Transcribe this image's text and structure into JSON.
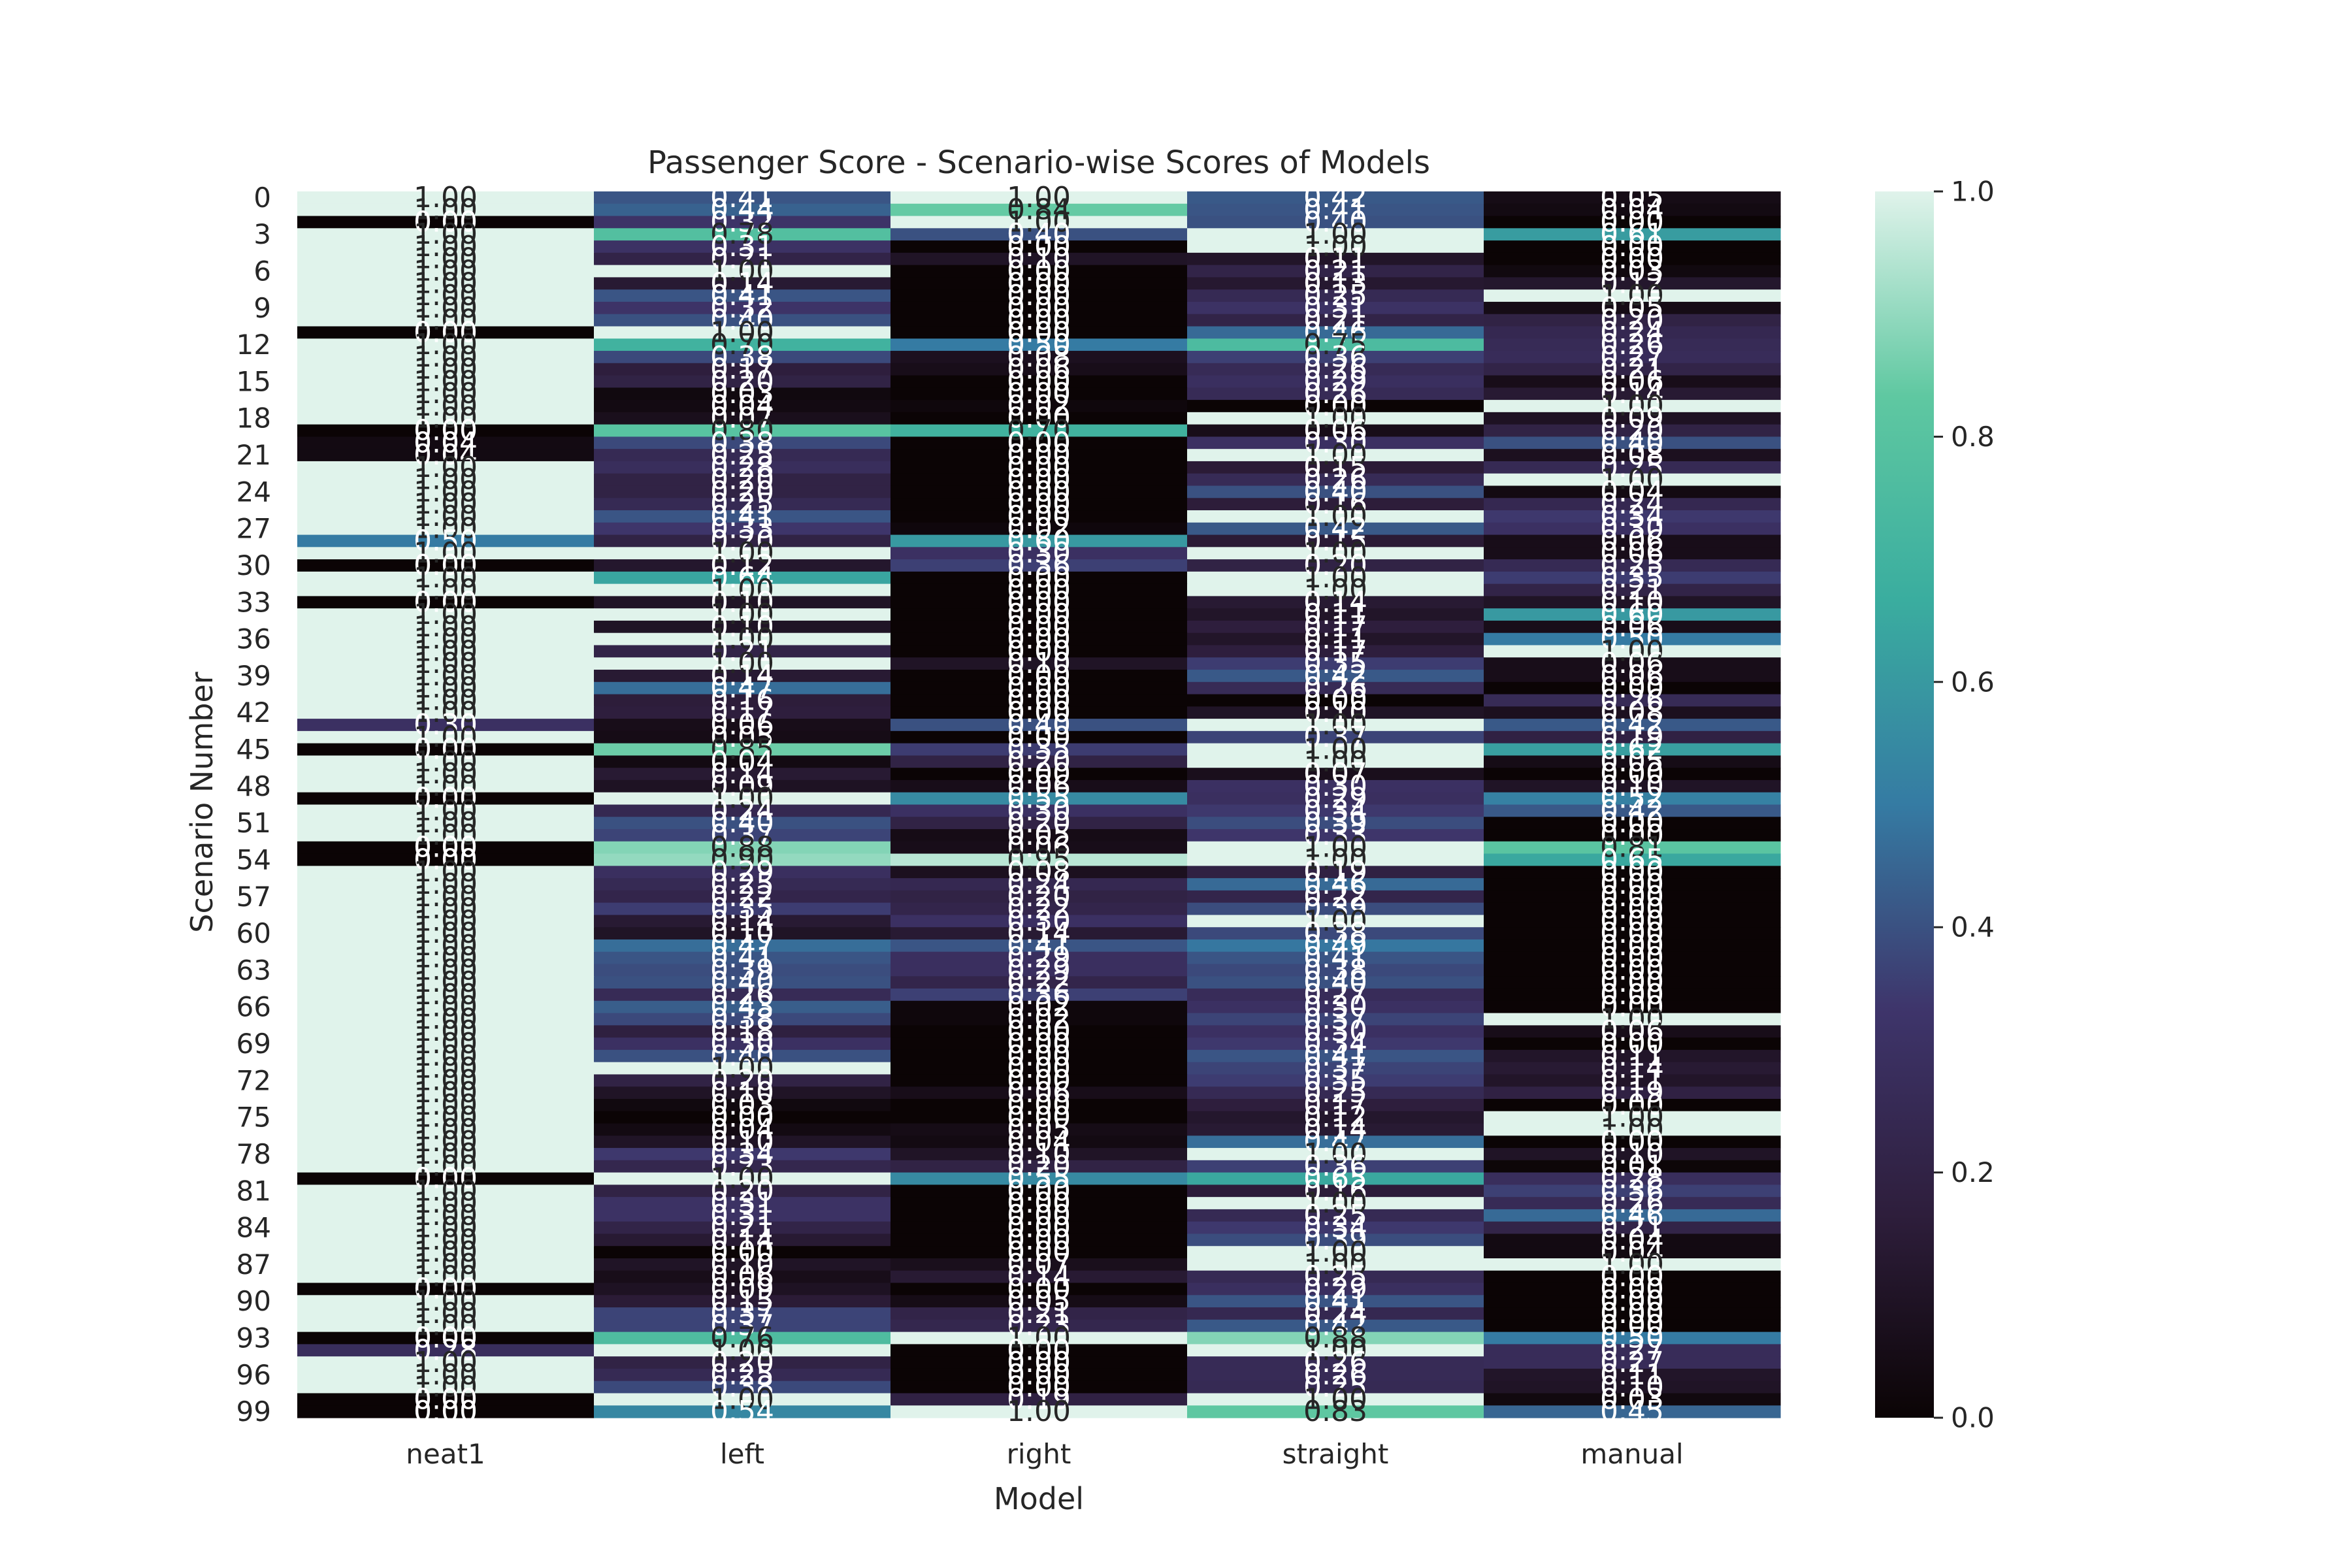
{
  "chart_data": {
    "type": "heatmap",
    "title": "Passenger Score - Scenario-wise Scores of Models",
    "xlabel": "Model",
    "ylabel": "Scenario Number",
    "x_categories": [
      "neat1",
      "left",
      "right",
      "straight",
      "manual"
    ],
    "y_categories": [
      0,
      1,
      2,
      3,
      4,
      5,
      6,
      7,
      8,
      9,
      10,
      11,
      12,
      13,
      14,
      15,
      16,
      17,
      18,
      19,
      20,
      21,
      22,
      23,
      24,
      25,
      26,
      27,
      28,
      29,
      30,
      31,
      32,
      33,
      34,
      35,
      36,
      37,
      38,
      39,
      40,
      41,
      42,
      43,
      44,
      45,
      46,
      47,
      48,
      49,
      50,
      51,
      52,
      53,
      54,
      55,
      56,
      57,
      58,
      59,
      60,
      61,
      62,
      63,
      64,
      65,
      66,
      67,
      68,
      69,
      70,
      71,
      72,
      73,
      74,
      75,
      76,
      77,
      78,
      79,
      80,
      81,
      82,
      83,
      84,
      85,
      86,
      87,
      88,
      89,
      90,
      91,
      92,
      93,
      94,
      95,
      96,
      97,
      98,
      99
    ],
    "y_tick_labels": [
      "0",
      "3",
      "6",
      "9",
      "12",
      "15",
      "18",
      "21",
      "24",
      "27",
      "30",
      "33",
      "36",
      "39",
      "42",
      "45",
      "48",
      "51",
      "54",
      "57",
      "60",
      "63",
      "66",
      "69",
      "72",
      "75",
      "78",
      "81",
      "84",
      "87",
      "90",
      "93",
      "96",
      "99"
    ],
    "colorbar": {
      "min": 0.0,
      "max": 1.0,
      "ticks": [
        "0.0",
        "0.2",
        "0.4",
        "0.6",
        "0.8",
        "1.0"
      ],
      "colormap": "mako",
      "stops": [
        "#0b0405",
        "#2e1e3c",
        "#3e356b",
        "#357ba3",
        "#3aad9f",
        "#5fc8a1",
        "#e0f3eb"
      ]
    },
    "annotation_format": "0.00",
    "values": [
      [
        1.0,
        0.41,
        1.0,
        0.42,
        0.05
      ],
      [
        1.0,
        0.44,
        0.84,
        0.41,
        0.04
      ],
      [
        0.0,
        0.32,
        1.0,
        0.4,
        0.0
      ],
      [
        1.0,
        0.78,
        0.4,
        1.0,
        0.61
      ],
      [
        1.0,
        0.31,
        0.0,
        1.0,
        0.0
      ],
      [
        1.0,
        0.21,
        0.1,
        0.11,
        0.0
      ],
      [
        1.0,
        1.0,
        0.0,
        0.21,
        0.03
      ],
      [
        1.0,
        0.14,
        0.0,
        0.13,
        0.12
      ],
      [
        1.0,
        0.41,
        0.0,
        0.25,
        1.0
      ],
      [
        1.0,
        0.32,
        0.0,
        0.31,
        0.05
      ],
      [
        1.0,
        0.4,
        0.0,
        0.21,
        0.2
      ],
      [
        0.0,
        1.0,
        0.0,
        0.46,
        0.24
      ],
      [
        1.0,
        0.7,
        0.5,
        0.75,
        0.26
      ],
      [
        1.0,
        0.38,
        0.08,
        0.36,
        0.27
      ],
      [
        1.0,
        0.17,
        0.06,
        0.26,
        0.21
      ],
      [
        1.0,
        0.2,
        0.0,
        0.29,
        0.06
      ],
      [
        1.0,
        0.03,
        0.0,
        0.26,
        0.14
      ],
      [
        1.0,
        0.04,
        0.02,
        0.0,
        1.0
      ],
      [
        1.0,
        0.07,
        0.0,
        1.0,
        0.09
      ],
      [
        0.0,
        0.8,
        0.7,
        0.06,
        0.2
      ],
      [
        0.04,
        0.38,
        0.0,
        0.3,
        0.4
      ],
      [
        0.04,
        0.25,
        0.0,
        1.0,
        0.08
      ],
      [
        1.0,
        0.28,
        0.0,
        0.15,
        0.25
      ],
      [
        1.0,
        0.2,
        0.0,
        0.26,
        1.0
      ],
      [
        1.0,
        0.2,
        0.0,
        0.4,
        0.04
      ],
      [
        1.0,
        0.25,
        0.0,
        0.16,
        0.24
      ],
      [
        1.0,
        0.41,
        0.0,
        1.0,
        0.34
      ],
      [
        1.0,
        0.33,
        0.02,
        0.42,
        0.3
      ],
      [
        0.5,
        0.2,
        0.6,
        0.15,
        0.06
      ],
      [
        1.0,
        1.0,
        0.3,
        1.0,
        0.06
      ],
      [
        0.0,
        0.12,
        0.36,
        0.2,
        0.25
      ],
      [
        1.0,
        0.64,
        0.0,
        1.0,
        0.35
      ],
      [
        1.0,
        1.0,
        0.0,
        1.0,
        0.21
      ],
      [
        0.0,
        0.1,
        0.0,
        0.14,
        0.1
      ],
      [
        1.0,
        1.0,
        0.0,
        0.11,
        0.6
      ],
      [
        1.0,
        0.1,
        0.0,
        0.17,
        0.06
      ],
      [
        1.0,
        1.0,
        0.0,
        0.11,
        0.5
      ],
      [
        1.0,
        0.21,
        0.0,
        0.17,
        1.0
      ],
      [
        1.0,
        1.0,
        0.1,
        0.35,
        0.06
      ],
      [
        1.0,
        0.14,
        0.0,
        0.42,
        0.06
      ],
      [
        1.0,
        0.47,
        0.0,
        0.26,
        0.0
      ],
      [
        1.0,
        0.16,
        0.0,
        0.0,
        0.26
      ],
      [
        1.0,
        0.17,
        0.0,
        0.1,
        0.08
      ],
      [
        0.3,
        0.06,
        0.4,
        1.0,
        0.42
      ],
      [
        1.0,
        0.05,
        0.0,
        0.37,
        0.19
      ],
      [
        0.0,
        0.85,
        0.35,
        1.0,
        0.62
      ],
      [
        1.0,
        0.04,
        0.2,
        1.0,
        0.05
      ],
      [
        1.0,
        0.14,
        0.0,
        0.07,
        0.0
      ],
      [
        1.0,
        0.09,
        0.06,
        0.3,
        0.1
      ],
      [
        0.0,
        1.0,
        0.55,
        0.29,
        0.52
      ],
      [
        1.0,
        0.24,
        0.3,
        0.34,
        0.42
      ],
      [
        1.0,
        0.4,
        0.2,
        0.39,
        0.0
      ],
      [
        1.0,
        0.37,
        0.05,
        0.33,
        0.0
      ],
      [
        0.0,
        0.88,
        0.06,
        1.0,
        0.81
      ],
      [
        0.0,
        0.9,
        0.95,
        1.0,
        0.65
      ],
      [
        1.0,
        0.29,
        0.08,
        0.19,
        0.0
      ],
      [
        1.0,
        0.25,
        0.24,
        0.46,
        0.0
      ],
      [
        1.0,
        0.22,
        0.2,
        0.22,
        0.0
      ],
      [
        1.0,
        0.35,
        0.22,
        0.39,
        0.0
      ],
      [
        1.0,
        0.14,
        0.3,
        1.0,
        0.0
      ],
      [
        1.0,
        0.1,
        0.14,
        0.38,
        0.0
      ],
      [
        1.0,
        0.47,
        0.41,
        0.49,
        0.0
      ],
      [
        1.0,
        0.41,
        0.29,
        0.41,
        0.0
      ],
      [
        1.0,
        0.39,
        0.29,
        0.38,
        0.0
      ],
      [
        1.0,
        0.4,
        0.22,
        0.4,
        0.0
      ],
      [
        1.0,
        0.26,
        0.36,
        0.27,
        0.0
      ],
      [
        1.0,
        0.43,
        0.02,
        0.3,
        0.0
      ],
      [
        1.0,
        0.38,
        0.02,
        0.37,
        1.0
      ],
      [
        1.0,
        0.18,
        0.0,
        0.3,
        0.06
      ],
      [
        1.0,
        0.3,
        0.0,
        0.34,
        0.0
      ],
      [
        1.0,
        0.4,
        0.0,
        0.41,
        0.11
      ],
      [
        1.0,
        1.0,
        0.0,
        0.37,
        0.14
      ],
      [
        1.0,
        0.2,
        0.0,
        0.35,
        0.11
      ],
      [
        1.0,
        0.1,
        0.06,
        0.25,
        0.19
      ],
      [
        1.0,
        0.03,
        0.0,
        0.17,
        0.0
      ],
      [
        1.0,
        0.0,
        0.0,
        0.12,
        1.0
      ],
      [
        1.0,
        0.04,
        0.05,
        0.14,
        1.0
      ],
      [
        1.0,
        0.1,
        0.04,
        0.47,
        0.0
      ],
      [
        1.0,
        0.34,
        0.1,
        1.0,
        0.1
      ],
      [
        1.0,
        0.23,
        0.2,
        0.36,
        0.01
      ],
      [
        0.0,
        1.0,
        0.55,
        0.65,
        0.28
      ],
      [
        1.0,
        0.2,
        0.0,
        0.16,
        0.36
      ],
      [
        1.0,
        0.31,
        0.0,
        1.0,
        0.26
      ],
      [
        1.0,
        0.31,
        0.0,
        0.25,
        0.46
      ],
      [
        1.0,
        0.21,
        0.0,
        0.34,
        0.21
      ],
      [
        1.0,
        0.14,
        0.0,
        0.39,
        0.04
      ],
      [
        1.0,
        0.0,
        0.0,
        1.0,
        0.04
      ],
      [
        1.0,
        0.1,
        0.07,
        1.0,
        1.0
      ],
      [
        1.0,
        0.06,
        0.14,
        0.25,
        0.0
      ],
      [
        0.0,
        0.09,
        0.0,
        0.29,
        0.0
      ],
      [
        1.0,
        0.15,
        0.05,
        0.41,
        0.0
      ],
      [
        1.0,
        0.37,
        0.21,
        0.24,
        0.0
      ],
      [
        1.0,
        0.37,
        0.23,
        0.42,
        0.0
      ],
      [
        0.0,
        0.76,
        1.0,
        0.88,
        0.5
      ],
      [
        0.28,
        1.0,
        0.0,
        1.0,
        0.27
      ],
      [
        1.0,
        0.2,
        0.0,
        0.26,
        0.27
      ],
      [
        1.0,
        0.25,
        0.0,
        0.26,
        0.11
      ],
      [
        1.0,
        0.38,
        0.0,
        0.25,
        0.1
      ],
      [
        0.0,
        1.0,
        0.19,
        1.0,
        0.03
      ],
      [
        0.0,
        0.54,
        1.0,
        0.83,
        0.45
      ]
    ]
  }
}
